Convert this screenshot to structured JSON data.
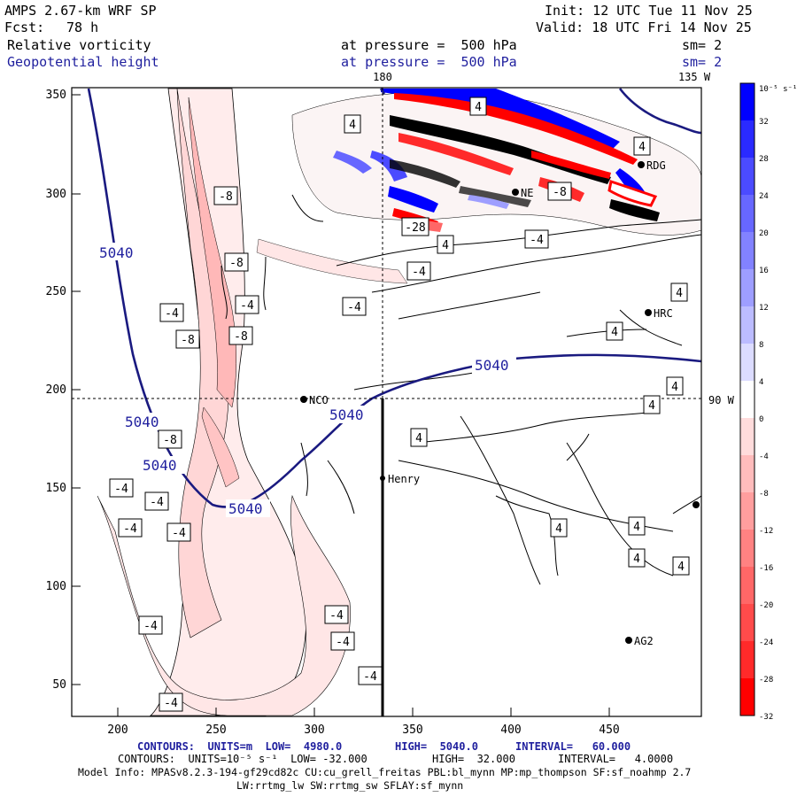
{
  "header": {
    "model": "AMPS 2.67-km WRF SP",
    "fcst_label": "Fcst:",
    "fcst_value": "78 h",
    "init": "Init: 12 UTC Tue 11 Nov 25",
    "valid": "Valid: 18 UTC Fri 14 Nov 25",
    "field1": "Relative vorticity",
    "field2": "Geopotential height",
    "pressure1": "at pressure =  500 hPa",
    "pressure2": "at pressure =  500 hPa",
    "sm1": "sm= 2",
    "sm2": "sm= 2"
  },
  "map": {
    "top_labels": [
      "180",
      "135 W"
    ],
    "right_label": "90 W",
    "x_ticks": [
      "200",
      "250",
      "300",
      "350",
      "400",
      "450"
    ],
    "y_ticks": [
      "350",
      "300",
      "250",
      "200",
      "150",
      "100",
      "50"
    ],
    "stations": [
      "NCO",
      "Henry",
      "HRC",
      "RDG",
      "AG2",
      "NE"
    ],
    "height_labels": [
      "5040",
      "5040",
      "5040",
      "5040",
      "5040",
      "5040"
    ],
    "vort_labels": [
      "4",
      "4",
      "4",
      "4",
      "4",
      "4",
      "4",
      "4",
      "4",
      "4",
      "4",
      "4",
      "-4",
      "-4",
      "-4",
      "-4",
      "-4",
      "-4",
      "-4",
      "-4",
      "-4",
      "-4",
      "-4",
      "-4",
      "-4",
      "-8",
      "-8",
      "-8",
      "-8",
      "-8",
      "-8",
      "-28"
    ]
  },
  "colorbar": {
    "unit": "10⁻⁵ s⁻¹",
    "labels": [
      "32",
      "28",
      "24",
      "20",
      "16",
      "12",
      "8",
      "4",
      "0",
      "-4",
      "-8",
      "-12",
      "-16",
      "-20",
      "-24",
      "-28",
      "-32"
    ],
    "colors": [
      "#0000ff",
      "#2a2aff",
      "#4b4bff",
      "#6767ff",
      "#8282ff",
      "#9e9eff",
      "#bcbcff",
      "#dcdcff",
      "#ffffff",
      "#ffdcdc",
      "#ffbcbc",
      "#ff9e9e",
      "#ff8282",
      "#ff6767",
      "#ff4b4b",
      "#ff2a2a",
      "#ff0000"
    ]
  },
  "footer": {
    "line1_a": "CONTOURS:  UNITS=m  LOW=  4980.0",
    "line1_b": "HIGH=  5040.0",
    "line1_c": "INTERVAL=   60.000",
    "line2_a": "CONTOURS:  UNITS=10⁻⁵ s⁻¹  LOW= -32.000",
    "line2_b": "HIGH=  32.000",
    "line2_c": "INTERVAL=   4.0000",
    "line3": "Model Info: MPASv8.2.3-194-gf29cd82c CU:cu_grell_freitas PBL:bl_mynn MP:mp_thompson SF:sf_noahmp 2.7",
    "line4": "LW:rrtmg_lw SW:rrtmg_sw SFLAY:sf_mynn"
  }
}
